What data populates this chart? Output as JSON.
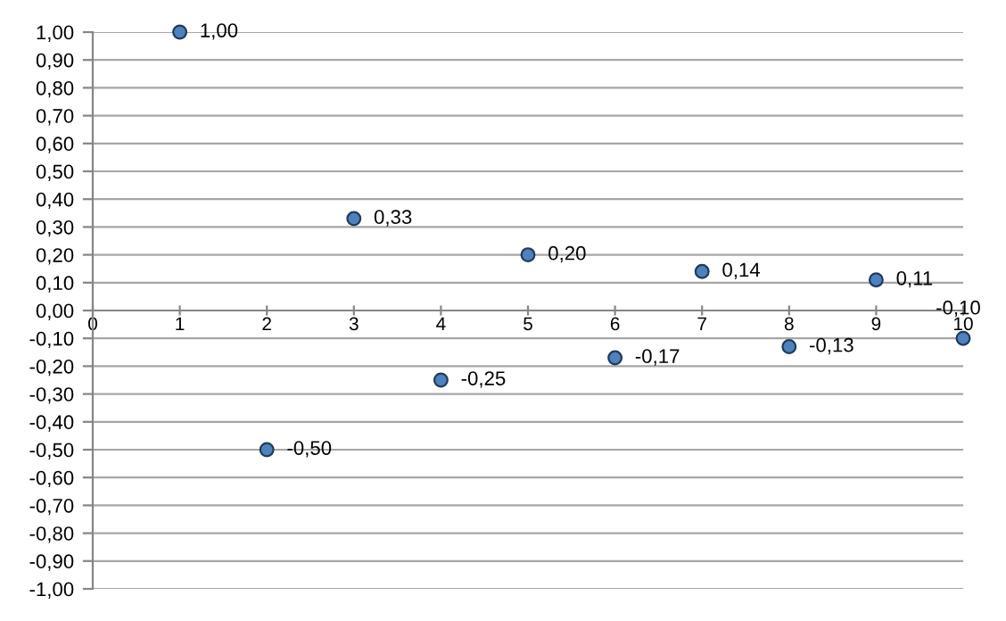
{
  "chart_data": {
    "type": "scatter",
    "x": [
      1,
      2,
      3,
      4,
      5,
      6,
      7,
      8,
      9,
      10
    ],
    "series": [
      {
        "color": "#4f81bd",
        "values": [
          1.0,
          -0.5,
          0.33,
          -0.25,
          0.2,
          -0.17,
          0.14,
          -0.13,
          0.11,
          -0.1
        ],
        "value_labels": [
          "1,00",
          "-0,50",
          "0,33",
          "-0,25",
          "0,20",
          "-0,17",
          "0,14",
          "-0,13",
          "0,11",
          "-0,10"
        ]
      }
    ],
    "xlim": [
      0,
      10
    ],
    "xticks": [
      0,
      1,
      2,
      3,
      4,
      5,
      6,
      7,
      8,
      9,
      10
    ],
    "ylim": [
      -1,
      1
    ],
    "yticks": [
      {
        "value": -1,
        "label": "-1,00"
      },
      {
        "value": -0.9,
        "label": "-0,90"
      },
      {
        "value": -0.8,
        "label": "-0,80"
      },
      {
        "value": -0.7,
        "label": "-0,70"
      },
      {
        "value": -0.6,
        "label": "-0,60"
      },
      {
        "value": -0.5,
        "label": "-0,50"
      },
      {
        "value": -0.4,
        "label": "-0,40"
      },
      {
        "value": -0.3,
        "label": "-0,30"
      },
      {
        "value": -0.2,
        "label": "-0,20"
      },
      {
        "value": -0.1,
        "label": "-0,10"
      },
      {
        "value": 0,
        "label": "0,00"
      },
      {
        "value": 0.1,
        "label": "0,10"
      },
      {
        "value": 0.2,
        "label": "0,20"
      },
      {
        "value": 0.3,
        "label": "0,30"
      },
      {
        "value": 0.4,
        "label": "0,40"
      },
      {
        "value": 0.5,
        "label": "0,50"
      },
      {
        "value": 0.6,
        "label": "0,60"
      },
      {
        "value": 0.7,
        "label": "0,70"
      },
      {
        "value": 0.8,
        "label": "0,80"
      },
      {
        "value": 0.9,
        "label": "0,90"
      },
      {
        "value": 1,
        "label": "1,00"
      }
    ],
    "grid": "y",
    "legend": false,
    "marker": "circle"
  }
}
